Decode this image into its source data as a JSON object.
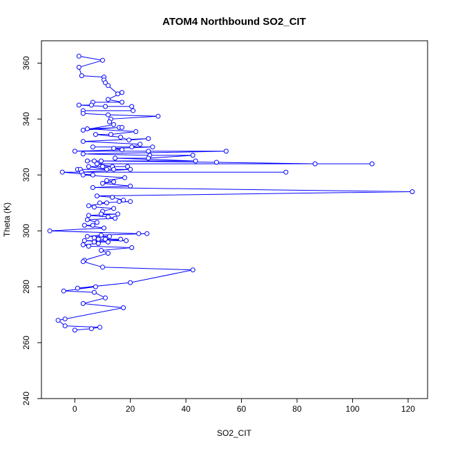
{
  "chart_data": {
    "type": "scatter",
    "title": "ATOM4 Northbound SO2_CIT",
    "xlabel": "SO2_CIT",
    "ylabel": "Theta (K)",
    "xlim": [
      -12,
      127
    ],
    "ylim": [
      240,
      368
    ],
    "xticks": [
      0,
      20,
      40,
      60,
      80,
      100,
      120
    ],
    "yticks": [
      240,
      260,
      280,
      300,
      320,
      340,
      360
    ],
    "grid": false,
    "legend": "none",
    "colors": {
      "series": "#0000ff",
      "axis": "#000000",
      "background": "#ffffff"
    },
    "series": [
      {
        "style": "points-and-lines",
        "points": [
          [
            1.5,
            362.5
          ],
          [
            10,
            361
          ],
          [
            1.5,
            358.5
          ],
          [
            2.5,
            355.5
          ],
          [
            10.5,
            355
          ],
          [
            10.5,
            354
          ],
          [
            11,
            353
          ],
          [
            12,
            352
          ],
          [
            15.5,
            349
          ],
          [
            17,
            349.5
          ],
          [
            12,
            347
          ],
          [
            17,
            346
          ],
          [
            6.5,
            346
          ],
          [
            6,
            345
          ],
          [
            1.5,
            345
          ],
          [
            11,
            344.5
          ],
          [
            20.5,
            344.5
          ],
          [
            21,
            343
          ],
          [
            3,
            343
          ],
          [
            3,
            342
          ],
          [
            12,
            341.5
          ],
          [
            30,
            341
          ],
          [
            13,
            340
          ],
          [
            12.5,
            339
          ],
          [
            14,
            338
          ],
          [
            3,
            336
          ],
          [
            16,
            337
          ],
          [
            17,
            337
          ],
          [
            4.5,
            336.5
          ],
          [
            22,
            335.5
          ],
          [
            13,
            334.5
          ],
          [
            7.5,
            334.5
          ],
          [
            16.5,
            333.5
          ],
          [
            19.5,
            332.5
          ],
          [
            26.5,
            333
          ],
          [
            3,
            332
          ],
          [
            23.5,
            331
          ],
          [
            20.5,
            330
          ],
          [
            6.5,
            330
          ],
          [
            28,
            330
          ],
          [
            14,
            329.5
          ],
          [
            17,
            329
          ],
          [
            0,
            328.5
          ],
          [
            26.5,
            328.5
          ],
          [
            54.5,
            328.5
          ],
          [
            3,
            327.5
          ],
          [
            27,
            327
          ],
          [
            42.5,
            327
          ],
          [
            26.5,
            326
          ],
          [
            14.5,
            326
          ],
          [
            43.5,
            325
          ],
          [
            4.5,
            325
          ],
          [
            7,
            325
          ],
          [
            9.5,
            325
          ],
          [
            51,
            324.5
          ],
          [
            86.5,
            324
          ],
          [
            107,
            324
          ],
          [
            8,
            324
          ],
          [
            13.5,
            323
          ],
          [
            19,
            323
          ],
          [
            10,
            323
          ],
          [
            5,
            323
          ],
          [
            11.5,
            322
          ],
          [
            1,
            322
          ],
          [
            14,
            322
          ],
          [
            2,
            322
          ],
          [
            20,
            322
          ],
          [
            2.5,
            321
          ],
          [
            76,
            321
          ],
          [
            -4.5,
            321
          ],
          [
            6.5,
            320
          ],
          [
            3,
            320
          ],
          [
            18,
            319
          ],
          [
            11.5,
            318
          ],
          [
            14,
            317.5
          ],
          [
            10,
            317
          ],
          [
            20,
            316
          ],
          [
            6.5,
            315.5
          ],
          [
            121.5,
            314
          ],
          [
            8,
            312.5
          ],
          [
            13.5,
            312
          ],
          [
            17.5,
            311
          ],
          [
            16,
            310.5
          ],
          [
            20,
            310.5
          ],
          [
            9,
            310
          ],
          [
            11.5,
            310
          ],
          [
            5,
            309
          ],
          [
            7,
            308.5
          ],
          [
            14,
            308
          ],
          [
            10,
            307
          ],
          [
            9.5,
            306
          ],
          [
            15.5,
            306
          ],
          [
            5,
            305.5
          ],
          [
            12,
            305
          ],
          [
            14.5,
            304.5
          ],
          [
            4.5,
            304
          ],
          [
            8,
            303
          ],
          [
            6.5,
            302
          ],
          [
            3.5,
            302
          ],
          [
            10.5,
            301
          ],
          [
            -9,
            300
          ],
          [
            23,
            299
          ],
          [
            26,
            299
          ],
          [
            9.5,
            298.5
          ],
          [
            4.5,
            298
          ],
          [
            12.5,
            298
          ],
          [
            7,
            297.5
          ],
          [
            8.5,
            297
          ],
          [
            16.5,
            297
          ],
          [
            11,
            297
          ],
          [
            18.5,
            296.5
          ],
          [
            3.5,
            296.5
          ],
          [
            12,
            296
          ],
          [
            7,
            296
          ],
          [
            8.5,
            295.5
          ],
          [
            3,
            295
          ],
          [
            5,
            294.5
          ],
          [
            20.5,
            294
          ],
          [
            9.5,
            293
          ],
          [
            12,
            292
          ],
          [
            3.5,
            289.5
          ],
          [
            3,
            289
          ],
          [
            10,
            287
          ],
          [
            42.5,
            286
          ],
          [
            20,
            281.5
          ],
          [
            1,
            279.5
          ],
          [
            7.5,
            280
          ],
          [
            -4,
            278.5
          ],
          [
            7,
            278
          ],
          [
            11,
            276
          ],
          [
            3,
            274
          ],
          [
            17.5,
            272.5
          ],
          [
            -3.5,
            268.5
          ],
          [
            -6,
            268
          ],
          [
            -3.5,
            266
          ],
          [
            9,
            265.5
          ],
          [
            6,
            265
          ],
          [
            0,
            264.5
          ]
        ]
      }
    ]
  }
}
